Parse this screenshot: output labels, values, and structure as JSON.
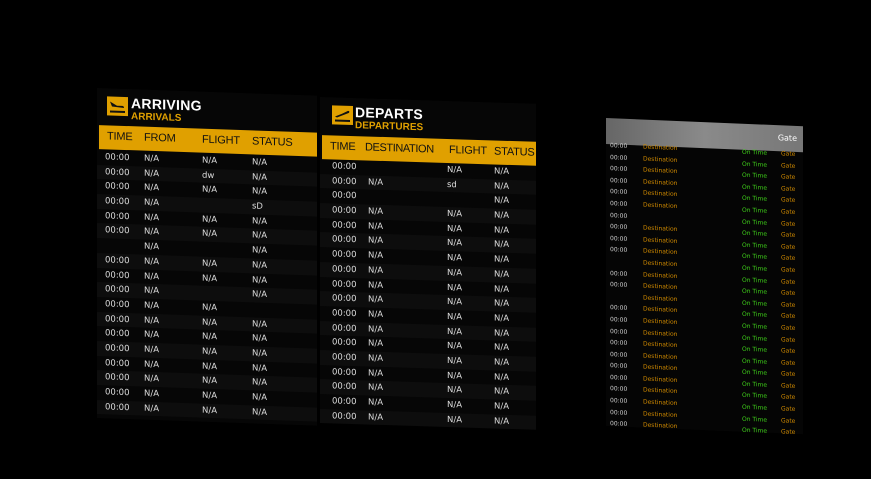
{
  "colors": {
    "accent": "#e0a000",
    "on_time": "#3fd01a",
    "destination": "#d08a00"
  },
  "arrivals": {
    "icon": "plane-landing-icon",
    "title": "ARRIVING",
    "subtitle": "ARRIVALS",
    "headers": [
      "TIME",
      "FROM",
      "FLIGHT",
      "STATUS"
    ],
    "rows": [
      [
        "00:00",
        "N/A",
        "N/A",
        "N/A"
      ],
      [
        "00:00",
        "N/A",
        "dw",
        "N/A"
      ],
      [
        "00:00",
        "N/A",
        "N/A",
        "N/A"
      ],
      [
        "00:00",
        "N/A",
        "",
        "sD"
      ],
      [
        "00:00",
        "N/A",
        "N/A",
        "N/A"
      ],
      [
        "00:00",
        "N/A",
        "N/A",
        "N/A"
      ],
      [
        "",
        "N/A",
        "",
        "N/A"
      ],
      [
        "00:00",
        "N/A",
        "N/A",
        "N/A"
      ],
      [
        "00:00",
        "N/A",
        "N/A",
        "N/A"
      ],
      [
        "00:00",
        "N/A",
        "",
        "N/A"
      ],
      [
        "00:00",
        "N/A",
        "N/A",
        ""
      ],
      [
        "00:00",
        "N/A",
        "N/A",
        "N/A"
      ],
      [
        "00:00",
        "N/A",
        "N/A",
        "N/A"
      ],
      [
        "00:00",
        "N/A",
        "N/A",
        "N/A"
      ],
      [
        "00:00",
        "N/A",
        "N/A",
        "N/A"
      ],
      [
        "00:00",
        "N/A",
        "N/A",
        "N/A"
      ],
      [
        "00:00",
        "N/A",
        "N/A",
        "N/A"
      ],
      [
        "00:00",
        "N/A",
        "N/A",
        "N/A"
      ]
    ]
  },
  "departures": {
    "icon": "plane-takeoff-icon",
    "title": "DEPARTS",
    "subtitle": "DEPARTURES",
    "headers": [
      "TIME",
      "DESTINATION",
      "FLIGHT",
      "STATUS"
    ],
    "rows": [
      [
        "00:00",
        "",
        "N/A",
        "N/A"
      ],
      [
        "00:00",
        "N/A",
        "sd",
        "N/A"
      ],
      [
        "00:00",
        "",
        "",
        "N/A"
      ],
      [
        "00:00",
        "N/A",
        "N/A",
        "N/A"
      ],
      [
        "00:00",
        "N/A",
        "N/A",
        "N/A"
      ],
      [
        "00:00",
        "N/A",
        "N/A",
        "N/A"
      ],
      [
        "00:00",
        "N/A",
        "N/A",
        "N/A"
      ],
      [
        "00:00",
        "N/A",
        "N/A",
        "N/A"
      ],
      [
        "00:00",
        "N/A",
        "N/A",
        "N/A"
      ],
      [
        "00:00",
        "N/A",
        "N/A",
        "N/A"
      ],
      [
        "00:00",
        "N/A",
        "N/A",
        "N/A"
      ],
      [
        "00:00",
        "N/A",
        "N/A",
        "N/A"
      ],
      [
        "00:00",
        "N/A",
        "N/A",
        "N/A"
      ],
      [
        "00:00",
        "N/A",
        "N/A",
        "N/A"
      ],
      [
        "00:00",
        "N/A",
        "N/A",
        "N/A"
      ],
      [
        "00:00",
        "N/A",
        "N/A",
        "N/A"
      ],
      [
        "00:00",
        "N/A",
        "N/A",
        "N/A"
      ],
      [
        "00:00",
        "N/A",
        "N/A",
        "N/A"
      ]
    ]
  },
  "gate_board": {
    "header": "Gate",
    "rows": [
      [
        "00:00",
        "Destination",
        "On Time",
        "Gate"
      ],
      [
        "00:00",
        "Destination",
        "On Time",
        "Gate"
      ],
      [
        "00:00",
        "Destination",
        "On Time",
        "Gate"
      ],
      [
        "00:00",
        "Destination",
        "On Time",
        "Gate"
      ],
      [
        "00:00",
        "Destination",
        "On Time",
        "Gate"
      ],
      [
        "00:00",
        "Destination",
        "On Time",
        "Gate"
      ],
      [
        "00:00",
        "",
        "On Time",
        "Gate"
      ],
      [
        "00:00",
        "Destination",
        "On Time",
        "Gate"
      ],
      [
        "00:00",
        "Destination",
        "On Time",
        "Gate"
      ],
      [
        "00:00",
        "Destination",
        "On Time",
        "Gate"
      ],
      [
        "",
        "Destination",
        "On Time",
        "Gate"
      ],
      [
        "00:00",
        "Destination",
        "On Time",
        "Gate"
      ],
      [
        "00:00",
        "Destination",
        "On Time",
        "Gate"
      ],
      [
        "",
        "Destination",
        "On Time",
        "Gate"
      ],
      [
        "00:00",
        "Destination",
        "On Time",
        "Gate"
      ],
      [
        "00:00",
        "Destination",
        "On Time",
        "Gate"
      ],
      [
        "00:00",
        "Destination",
        "On Time",
        "Gate"
      ],
      [
        "00:00",
        "Destination",
        "On Time",
        "Gate"
      ],
      [
        "00:00",
        "Destination",
        "On Time",
        "Gate"
      ],
      [
        "00:00",
        "Destination",
        "On Time",
        "Gate"
      ],
      [
        "00:00",
        "Destination",
        "On Time",
        "Gate"
      ],
      [
        "00:00",
        "Destination",
        "On Time",
        "Gate"
      ],
      [
        "00:00",
        "Destination",
        "On Time",
        "Gate"
      ],
      [
        "00:00",
        "Destination",
        "On Time",
        "Gate"
      ],
      [
        "00:00",
        "Destination",
        "On Time",
        "Gate"
      ]
    ]
  }
}
